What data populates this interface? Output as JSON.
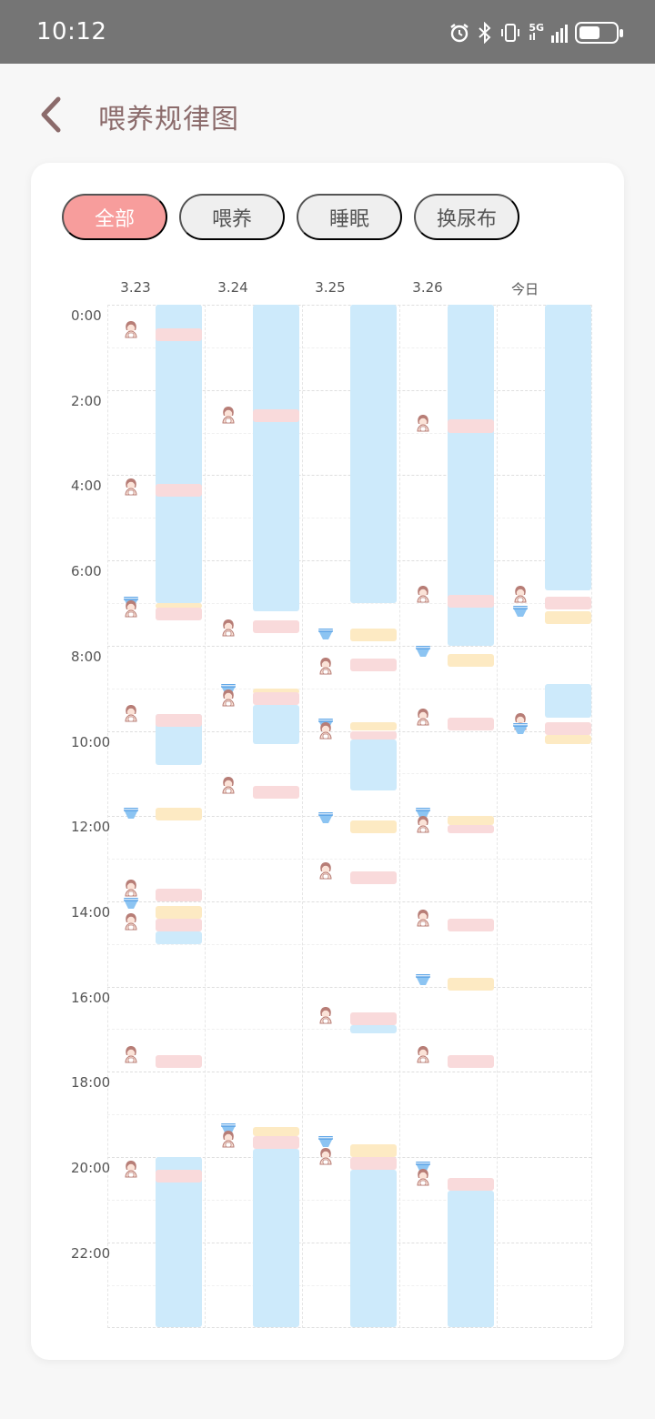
{
  "status_bar": {
    "time": "10:12",
    "battery_level": 0.55
  },
  "header": {
    "back_icon": "chevron-left-icon",
    "title": "喂养规律图"
  },
  "tabs": [
    {
      "label": "全部",
      "active": true
    },
    {
      "label": "喂养",
      "active": false
    },
    {
      "label": "睡眠",
      "active": false
    },
    {
      "label": "换尿布",
      "active": false
    }
  ],
  "colors": {
    "sleep": "#cdeafb",
    "feed": "#f9dadb",
    "diaper": "#fdeac3",
    "active_tab": "#f79d9c",
    "title": "#8b6b6b"
  },
  "chart_data": {
    "type": "timeline",
    "days": [
      "3.23",
      "3.24",
      "3.25",
      "3.26",
      "今日"
    ],
    "time_ticks": [
      "0:00",
      "2:00",
      "4:00",
      "6:00",
      "8:00",
      "10:00",
      "12:00",
      "14:00",
      "16:00",
      "18:00",
      "20:00",
      "22:00"
    ],
    "y_range_hours": [
      0,
      24
    ],
    "legend_icons": {
      "feed": "baby-bottle-feeding-icon",
      "diaper": "diaper-icon"
    },
    "columns": [
      {
        "day": "3.23",
        "segments": [
          {
            "type": "sleep",
            "start": 0.0,
            "end": 7.0
          },
          {
            "type": "feed",
            "start": 0.55,
            "end": 0.85
          },
          {
            "type": "feed",
            "start": 4.2,
            "end": 4.5
          },
          {
            "type": "diaper",
            "start": 7.0,
            "end": 7.1
          },
          {
            "type": "feed",
            "start": 7.1,
            "end": 7.4
          },
          {
            "type": "sleep",
            "start": 9.6,
            "end": 10.8
          },
          {
            "type": "feed",
            "start": 9.6,
            "end": 9.9
          },
          {
            "type": "diaper",
            "start": 11.8,
            "end": 12.1
          },
          {
            "type": "feed",
            "start": 13.7,
            "end": 14.0
          },
          {
            "type": "diaper",
            "start": 14.1,
            "end": 14.4
          },
          {
            "type": "feed",
            "start": 14.4,
            "end": 14.7
          },
          {
            "type": "sleep",
            "start": 14.7,
            "end": 15.0
          },
          {
            "type": "feed",
            "start": 17.6,
            "end": 17.9
          },
          {
            "type": "sleep",
            "start": 20.0,
            "end": 24.0
          },
          {
            "type": "feed",
            "start": 20.3,
            "end": 20.6
          }
        ],
        "events": [
          {
            "type": "feed",
            "time": 0.6
          },
          {
            "type": "feed",
            "time": 4.3
          },
          {
            "type": "diaper",
            "time": 7.05
          },
          {
            "type": "feed",
            "time": 7.15
          },
          {
            "type": "feed",
            "time": 9.6
          },
          {
            "type": "diaper",
            "time": 12.0
          },
          {
            "type": "feed",
            "time": 13.7
          },
          {
            "type": "diaper",
            "time": 14.1
          },
          {
            "type": "feed",
            "time": 14.5
          },
          {
            "type": "feed",
            "time": 17.6
          },
          {
            "type": "feed",
            "time": 20.3
          }
        ]
      },
      {
        "day": "3.24",
        "segments": [
          {
            "type": "sleep",
            "start": 0.0,
            "end": 7.2
          },
          {
            "type": "feed",
            "start": 2.45,
            "end": 2.75
          },
          {
            "type": "feed",
            "start": 7.4,
            "end": 7.7
          },
          {
            "type": "diaper",
            "start": 9.0,
            "end": 9.1
          },
          {
            "type": "feed",
            "start": 9.1,
            "end": 9.4
          },
          {
            "type": "sleep",
            "start": 9.4,
            "end": 10.3
          },
          {
            "type": "feed",
            "start": 11.3,
            "end": 11.6
          },
          {
            "type": "diaper",
            "start": 19.3,
            "end": 19.5
          },
          {
            "type": "feed",
            "start": 19.5,
            "end": 19.8
          },
          {
            "type": "sleep",
            "start": 19.8,
            "end": 24.0
          }
        ],
        "events": [
          {
            "type": "feed",
            "time": 2.6
          },
          {
            "type": "feed",
            "time": 7.6
          },
          {
            "type": "diaper",
            "time": 9.1
          },
          {
            "type": "feed",
            "time": 9.25
          },
          {
            "type": "feed",
            "time": 11.3
          },
          {
            "type": "diaper",
            "time": 19.4
          },
          {
            "type": "feed",
            "time": 19.6
          }
        ]
      },
      {
        "day": "3.25",
        "segments": [
          {
            "type": "sleep",
            "start": 0.0,
            "end": 7.0
          },
          {
            "type": "diaper",
            "start": 7.6,
            "end": 7.9
          },
          {
            "type": "feed",
            "start": 8.3,
            "end": 8.6
          },
          {
            "type": "diaper",
            "start": 9.8,
            "end": 10.0
          },
          {
            "type": "feed",
            "start": 10.0,
            "end": 10.2
          },
          {
            "type": "sleep",
            "start": 10.2,
            "end": 11.4
          },
          {
            "type": "diaper",
            "start": 12.1,
            "end": 12.4
          },
          {
            "type": "feed",
            "start": 13.3,
            "end": 13.6
          },
          {
            "type": "feed",
            "start": 16.6,
            "end": 16.9
          },
          {
            "type": "sleep",
            "start": 16.9,
            "end": 17.1
          },
          {
            "type": "diaper",
            "start": 19.7,
            "end": 20.0
          },
          {
            "type": "feed",
            "start": 20.0,
            "end": 20.3
          },
          {
            "type": "sleep",
            "start": 20.3,
            "end": 24.0
          }
        ],
        "events": [
          {
            "type": "diaper",
            "time": 7.8
          },
          {
            "type": "feed",
            "time": 8.5
          },
          {
            "type": "diaper",
            "time": 9.9
          },
          {
            "type": "feed",
            "time": 10.0
          },
          {
            "type": "diaper",
            "time": 12.1
          },
          {
            "type": "feed",
            "time": 13.3
          },
          {
            "type": "feed",
            "time": 16.7
          },
          {
            "type": "diaper",
            "time": 19.7
          },
          {
            "type": "feed",
            "time": 20.0
          }
        ]
      },
      {
        "day": "3.26",
        "segments": [
          {
            "type": "sleep",
            "start": 0.0,
            "end": 8.0
          },
          {
            "type": "feed",
            "start": 2.7,
            "end": 3.0
          },
          {
            "type": "feed",
            "start": 6.8,
            "end": 7.1
          },
          {
            "type": "diaper",
            "start": 8.2,
            "end": 8.5
          },
          {
            "type": "feed",
            "start": 9.7,
            "end": 10.0
          },
          {
            "type": "diaper",
            "start": 12.0,
            "end": 12.2
          },
          {
            "type": "feed",
            "start": 12.2,
            "end": 12.4
          },
          {
            "type": "feed",
            "start": 14.4,
            "end": 14.7
          },
          {
            "type": "diaper",
            "start": 15.8,
            "end": 16.1
          },
          {
            "type": "feed",
            "start": 17.6,
            "end": 17.9
          },
          {
            "type": "feed",
            "start": 20.5,
            "end": 20.8
          },
          {
            "type": "sleep",
            "start": 20.8,
            "end": 24.0
          }
        ],
        "events": [
          {
            "type": "feed",
            "time": 2.8
          },
          {
            "type": "feed",
            "time": 6.8
          },
          {
            "type": "diaper",
            "time": 8.2
          },
          {
            "type": "feed",
            "time": 9.7
          },
          {
            "type": "diaper",
            "time": 12.0
          },
          {
            "type": "feed",
            "time": 12.2
          },
          {
            "type": "feed",
            "time": 14.4
          },
          {
            "type": "diaper",
            "time": 15.9
          },
          {
            "type": "feed",
            "time": 17.6
          },
          {
            "type": "diaper",
            "time": 20.3
          },
          {
            "type": "feed",
            "time": 20.5
          }
        ]
      },
      {
        "day": "今日",
        "segments": [
          {
            "type": "sleep",
            "start": 0.0,
            "end": 6.7
          },
          {
            "type": "feed",
            "start": 6.85,
            "end": 7.15
          },
          {
            "type": "diaper",
            "start": 7.2,
            "end": 7.5
          },
          {
            "type": "sleep",
            "start": 8.9,
            "end": 9.7
          },
          {
            "type": "feed",
            "start": 9.8,
            "end": 10.1
          },
          {
            "type": "diaper",
            "start": 10.1,
            "end": 10.3
          }
        ],
        "events": [
          {
            "type": "feed",
            "time": 6.8
          },
          {
            "type": "diaper",
            "time": 7.25
          },
          {
            "type": "feed",
            "time": 9.8
          },
          {
            "type": "diaper",
            "time": 10.0
          }
        ]
      }
    ]
  }
}
